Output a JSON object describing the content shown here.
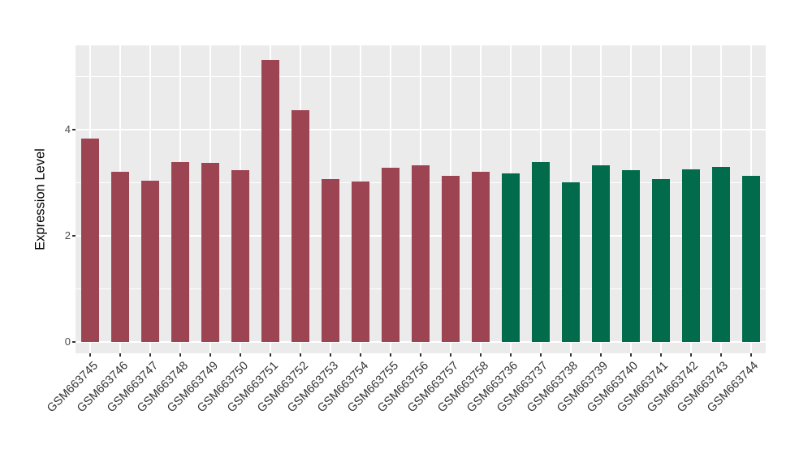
{
  "chart_data": {
    "type": "bar",
    "title": "",
    "xlabel": "",
    "ylabel": "Expression Level",
    "ylim": [
      -0.21,
      5.58
    ],
    "yticks": [
      0,
      2,
      4
    ],
    "minor_gridlines": [
      1,
      3,
      5
    ],
    "grid": true,
    "legend": "none",
    "panel_bg": "#EBEBEB",
    "grid_color": "#FFFFFF",
    "axis_text_color": "#4D4D4D",
    "categories": [
      "GSM663745",
      "GSM663746",
      "GSM663747",
      "GSM663748",
      "GSM663749",
      "GSM663750",
      "GSM663751",
      "GSM663752",
      "GSM663753",
      "GSM663754",
      "GSM663755",
      "GSM663756",
      "GSM663757",
      "GSM663758",
      "GSM663736",
      "GSM663737",
      "GSM663738",
      "GSM663739",
      "GSM663740",
      "GSM663741",
      "GSM663742",
      "GSM663743",
      "GSM663744"
    ],
    "values": [
      3.83,
      3.21,
      3.03,
      3.38,
      3.37,
      3.23,
      5.3,
      4.36,
      3.06,
      3.02,
      3.28,
      3.32,
      3.13,
      3.21,
      3.18,
      3.39,
      3.01,
      3.32,
      3.23,
      3.07,
      3.25,
      3.29,
      3.13
    ],
    "bar_groups": [
      "maroon",
      "maroon",
      "maroon",
      "maroon",
      "maroon",
      "maroon",
      "maroon",
      "maroon",
      "maroon",
      "maroon",
      "maroon",
      "maroon",
      "maroon",
      "maroon",
      "green",
      "green",
      "green",
      "green",
      "green",
      "green",
      "green",
      "green",
      "green"
    ],
    "group_colors": {
      "maroon": "#9C4451",
      "green": "#026B4C"
    }
  }
}
